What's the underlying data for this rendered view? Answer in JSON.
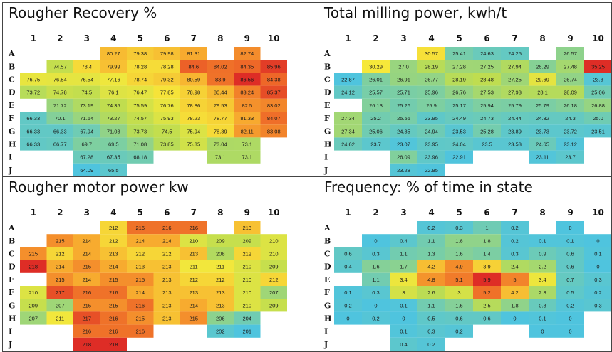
{
  "chart_data": [
    {
      "type": "heatmap",
      "title": "Rougher Recovery %",
      "columns": [
        "1",
        "2",
        "3",
        "4",
        "5",
        "6",
        "7",
        "8",
        "9",
        "10"
      ],
      "rows": [
        "A",
        "B",
        "C",
        "D",
        "E",
        "F",
        "G",
        "H",
        "I",
        "J"
      ],
      "values": [
        [
          "",
          "",
          "",
          "80.27",
          "79.38",
          "79.98",
          "81.31",
          "",
          "82.74",
          ""
        ],
        [
          "",
          "74.57",
          "78.4",
          "79.99",
          "78.28",
          "78.28",
          "84.6",
          "84.02",
          "84.35",
          "85.96"
        ],
        [
          "76.75",
          "76.54",
          "76.54",
          "77.16",
          "78.74",
          "79.32",
          "80.59",
          "83.9",
          "86.56",
          "84.38"
        ],
        [
          "73.72",
          "74.78",
          "74.5",
          "76.1",
          "76.47",
          "77.85",
          "78.98",
          "80.44",
          "83.24",
          "85.37"
        ],
        [
          "",
          "71.72",
          "73.19",
          "74.35",
          "75.59",
          "76.76",
          "78.86",
          "79.53",
          "82.5",
          "83.02"
        ],
        [
          "66.33",
          "70.1",
          "71.64",
          "73.27",
          "74.57",
          "75.93",
          "78.23",
          "78.77",
          "81.33",
          "84.07"
        ],
        [
          "66.33",
          "66.33",
          "67.94",
          "71.03",
          "73.73",
          "74.5",
          "75.94",
          "78.39",
          "82.11",
          "83.08"
        ],
        [
          "66.33",
          "66.77",
          "69.7",
          "69.5",
          "71.08",
          "73.85",
          "75.35",
          "73.04",
          "73.1",
          ""
        ],
        [
          "",
          "",
          "67.28",
          "67.35",
          "68.18",
          "",
          "",
          "73.1",
          "73.1",
          ""
        ],
        [
          "",
          "",
          "64.09",
          "65.5",
          "",
          "",
          "",
          "",
          "",
          ""
        ]
      ]
    },
    {
      "type": "heatmap",
      "title": "Total milling power, kwh/t",
      "columns": [
        "1",
        "2",
        "3",
        "4",
        "5",
        "6",
        "7",
        "8",
        "9",
        "10"
      ],
      "rows": [
        "A",
        "B",
        "C",
        "D",
        "E",
        "F",
        "G",
        "H",
        "I",
        "J"
      ],
      "values": [
        [
          "",
          "",
          "",
          "30.57",
          "25.41",
          "24.63",
          "24.25",
          "",
          "26.57",
          ""
        ],
        [
          "",
          "30.29",
          "27.0",
          "28.19",
          "27.28",
          "27.25",
          "27.94",
          "26.29",
          "27.48",
          "35.25"
        ],
        [
          "22.87",
          "26.01",
          "26.91",
          "26.77",
          "28.19",
          "28.48",
          "27.25",
          "29.69",
          "26.74",
          "23.3"
        ],
        [
          "24.12",
          "25.57",
          "25.71",
          "25.96",
          "26.76",
          "27.53",
          "27.93",
          "28.1",
          "28.09",
          "25.06"
        ],
        [
          "",
          "26.13",
          "25.26",
          "25.9",
          "25.17",
          "25.94",
          "25.79",
          "25.79",
          "26.18",
          "26.88"
        ],
        [
          "27.34",
          "25.2",
          "25.55",
          "23.95",
          "24.49",
          "24.73",
          "24.44",
          "24.32",
          "24.3",
          "25.0"
        ],
        [
          "27.34",
          "25.06",
          "24.35",
          "24.94",
          "23.53",
          "25.28",
          "23.89",
          "23.73",
          "23.72",
          "23.51"
        ],
        [
          "24.62",
          "23.7",
          "23.07",
          "23.95",
          "24.04",
          "23.5",
          "23.53",
          "24.65",
          "23.12",
          ""
        ],
        [
          "",
          "",
          "26.09",
          "23.96",
          "22.91",
          "",
          "",
          "23.11",
          "23.7",
          ""
        ],
        [
          "",
          "",
          "23.28",
          "22.95",
          "",
          "",
          "",
          "",
          "",
          ""
        ]
      ]
    },
    {
      "type": "heatmap",
      "title": "Rougher motor power kw",
      "columns": [
        "1",
        "2",
        "3",
        "4",
        "5",
        "6",
        "7",
        "8",
        "9",
        "10"
      ],
      "rows": [
        "A",
        "B",
        "C",
        "D",
        "E",
        "F",
        "G",
        "H",
        "I",
        "J"
      ],
      "values": [
        [
          "",
          "",
          "",
          "212",
          "216",
          "216",
          "216",
          "",
          "213",
          ""
        ],
        [
          "",
          "215",
          "214",
          "212",
          "214",
          "214",
          "210",
          "209",
          "209",
          "210"
        ],
        [
          "215",
          "212",
          "214",
          "213",
          "212",
          "212",
          "213",
          "208",
          "212",
          "210"
        ],
        [
          "218",
          "214",
          "215",
          "214",
          "213",
          "213",
          "211",
          "211",
          "210",
          "209"
        ],
        [
          "",
          "215",
          "214",
          "215",
          "215",
          "213",
          "212",
          "212",
          "210",
          "212"
        ],
        [
          "210",
          "217",
          "216",
          "216",
          "214",
          "213",
          "213",
          "213",
          "210",
          "207"
        ],
        [
          "209",
          "207",
          "215",
          "215",
          "216",
          "213",
          "214",
          "213",
          "210",
          "209"
        ],
        [
          "207",
          "211",
          "217",
          "216",
          "215",
          "213",
          "215",
          "206",
          "204",
          ""
        ],
        [
          "",
          "",
          "216",
          "216",
          "216",
          "",
          "",
          "202",
          "201",
          ""
        ],
        [
          "",
          "",
          "218",
          "218",
          "",
          "",
          "",
          "",
          "",
          ""
        ]
      ]
    },
    {
      "type": "heatmap",
      "title": "Frequency: % of time in state",
      "columns": [
        "1",
        "2",
        "3",
        "4",
        "5",
        "6",
        "7",
        "8",
        "9",
        "10"
      ],
      "rows": [
        "A",
        "B",
        "C",
        "D",
        "E",
        "F",
        "G",
        "H",
        "I",
        "J"
      ],
      "values": [
        [
          "",
          "",
          "",
          "0.2",
          "0.3",
          "1",
          "0.2",
          "",
          "0",
          ""
        ],
        [
          "",
          "0",
          "0.4",
          "1.1",
          "1.8",
          "1.8",
          "0.2",
          "0.1",
          "0.1",
          "0"
        ],
        [
          "0.6",
          "0.3",
          "1.1",
          "1.3",
          "1.6",
          "1.4",
          "0.3",
          "0.9",
          "0.6",
          "0.1"
        ],
        [
          "0.4",
          "1.6",
          "1.7",
          "4.2",
          "4.9",
          "3.9",
          "2.4",
          "2.2",
          "0.6",
          "0"
        ],
        [
          "",
          "1.1",
          "3.4",
          "4.8",
          "5.1",
          "5.9",
          "5",
          "3.4",
          "0.7",
          "0.3"
        ],
        [
          "0.1",
          "0.3",
          "3",
          "2.6",
          "3",
          "5.2",
          "4.2",
          "2.3",
          "0.5",
          "0.2"
        ],
        [
          "0.2",
          "0",
          "0.1",
          "1.1",
          "1.6",
          "2.5",
          "1.8",
          "0.8",
          "0.2",
          "0.3"
        ],
        [
          "0",
          "0.2",
          "0",
          "0.5",
          "0.6",
          "0.6",
          "0",
          "0.1",
          "0",
          ""
        ],
        [
          "",
          "",
          "0.1",
          "0.3",
          "0.2",
          "",
          "",
          "0",
          "0",
          ""
        ],
        [
          "",
          "",
          "0.4",
          "0.2",
          "",
          "",
          "",
          "",
          "",
          ""
        ]
      ]
    }
  ]
}
